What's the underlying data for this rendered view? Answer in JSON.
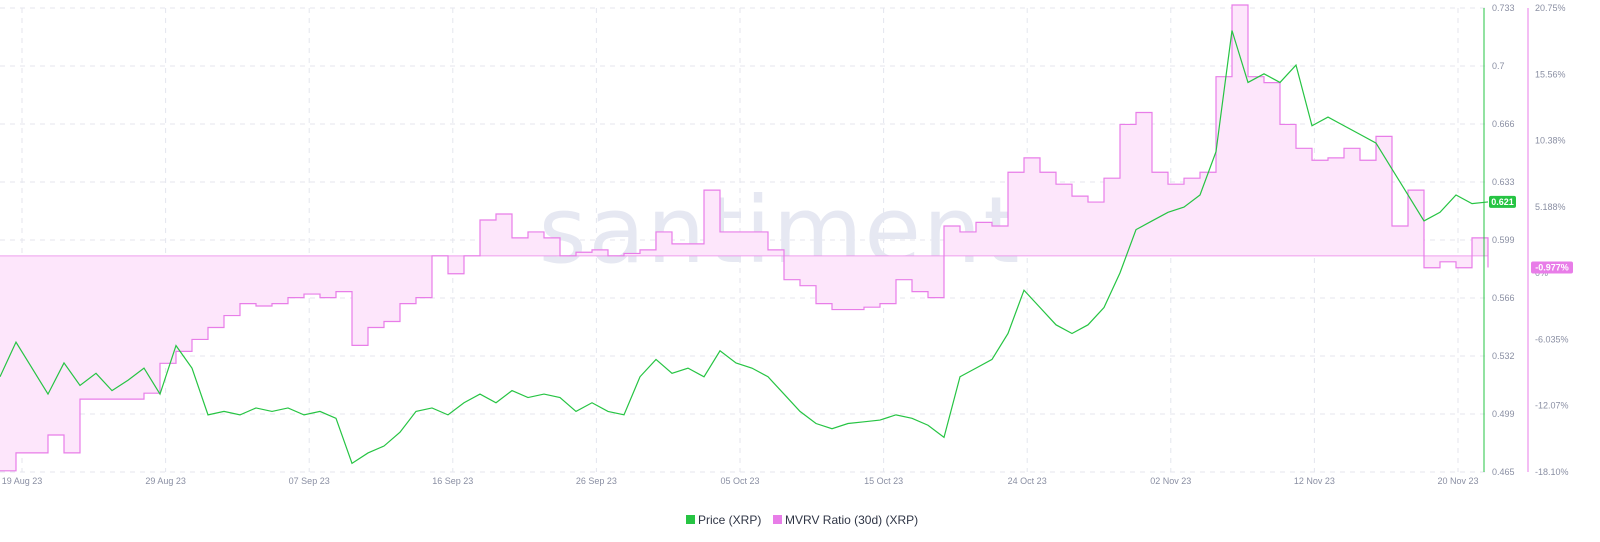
{
  "watermark": "santiment",
  "colors": {
    "price": "#26c443",
    "mvrv": "#e87de8",
    "mvrv_fill": "#fde6fb",
    "grid": "#e4e6ee"
  },
  "chart_data": {
    "type": "line",
    "x_ticks": [
      "19 Aug 23",
      "29 Aug 23",
      "07 Sep 23",
      "16 Sep 23",
      "26 Sep 23",
      "05 Oct 23",
      "15 Oct 23",
      "24 Oct 23",
      "02 Nov 23",
      "12 Nov 23",
      "20 Nov 23"
    ],
    "x_range": [
      0,
      93
    ],
    "series": [
      {
        "name": "Price (XRP)",
        "axis": "right-inner",
        "ylim": [
          0.465,
          0.733
        ],
        "y_ticks": [
          "0.733",
          "0.7",
          "0.666",
          "0.633",
          "0.599",
          "0.566",
          "0.532",
          "0.499",
          "0.465"
        ],
        "last_value": "0.621",
        "points": [
          [
            0,
            0.52
          ],
          [
            1,
            0.54
          ],
          [
            2,
            0.525
          ],
          [
            3,
            0.51
          ],
          [
            4,
            0.528
          ],
          [
            5,
            0.515
          ],
          [
            6,
            0.522
          ],
          [
            7,
            0.512
          ],
          [
            8,
            0.518
          ],
          [
            9,
            0.525
          ],
          [
            10,
            0.51
          ],
          [
            11,
            0.538
          ],
          [
            12,
            0.525
          ],
          [
            13,
            0.498
          ],
          [
            14,
            0.5
          ],
          [
            15,
            0.498
          ],
          [
            16,
            0.502
          ],
          [
            17,
            0.5
          ],
          [
            18,
            0.502
          ],
          [
            19,
            0.498
          ],
          [
            20,
            0.5
          ],
          [
            21,
            0.496
          ],
          [
            22,
            0.47
          ],
          [
            23,
            0.476
          ],
          [
            24,
            0.48
          ],
          [
            25,
            0.488
          ],
          [
            26,
            0.5
          ],
          [
            27,
            0.502
          ],
          [
            28,
            0.498
          ],
          [
            29,
            0.505
          ],
          [
            30,
            0.51
          ],
          [
            31,
            0.505
          ],
          [
            32,
            0.512
          ],
          [
            33,
            0.508
          ],
          [
            34,
            0.51
          ],
          [
            35,
            0.508
          ],
          [
            36,
            0.5
          ],
          [
            37,
            0.505
          ],
          [
            38,
            0.5
          ],
          [
            39,
            0.498
          ],
          [
            40,
            0.52
          ],
          [
            41,
            0.53
          ],
          [
            42,
            0.522
          ],
          [
            43,
            0.525
          ],
          [
            44,
            0.52
          ],
          [
            45,
            0.535
          ],
          [
            46,
            0.528
          ],
          [
            47,
            0.525
          ],
          [
            48,
            0.52
          ],
          [
            49,
            0.51
          ],
          [
            50,
            0.5
          ],
          [
            51,
            0.493
          ],
          [
            52,
            0.49
          ],
          [
            53,
            0.493
          ],
          [
            54,
            0.494
          ],
          [
            55,
            0.495
          ],
          [
            56,
            0.498
          ],
          [
            57,
            0.496
          ],
          [
            58,
            0.492
          ],
          [
            59,
            0.485
          ],
          [
            60,
            0.52
          ],
          [
            61,
            0.525
          ],
          [
            62,
            0.53
          ],
          [
            63,
            0.545
          ],
          [
            64,
            0.57
          ],
          [
            65,
            0.56
          ],
          [
            66,
            0.55
          ],
          [
            67,
            0.545
          ],
          [
            68,
            0.55
          ],
          [
            69,
            0.56
          ],
          [
            70,
            0.58
          ],
          [
            71,
            0.605
          ],
          [
            72,
            0.61
          ],
          [
            73,
            0.615
          ],
          [
            74,
            0.618
          ],
          [
            75,
            0.625
          ],
          [
            76,
            0.65
          ],
          [
            77,
            0.72
          ],
          [
            78,
            0.69
          ],
          [
            79,
            0.695
          ],
          [
            80,
            0.69
          ],
          [
            81,
            0.7
          ],
          [
            82,
            0.665
          ],
          [
            83,
            0.67
          ],
          [
            84,
            0.665
          ],
          [
            85,
            0.66
          ],
          [
            86,
            0.655
          ],
          [
            87,
            0.64
          ],
          [
            88,
            0.625
          ],
          [
            89,
            0.61
          ],
          [
            90,
            0.615
          ],
          [
            91,
            0.625
          ],
          [
            92,
            0.62
          ],
          [
            93,
            0.621
          ]
        ]
      },
      {
        "name": "MVRV Ratio (30d) (XRP)",
        "axis": "right-outer",
        "ylim": [
          -18.1,
          20.75
        ],
        "y_ticks": [
          "20.75%",
          "15.56%",
          "10.38%",
          "5.188%",
          "0%",
          "-6.035%",
          "-12.07%",
          "-18.10%"
        ],
        "last_value": "-0.977%",
        "points": [
          [
            0,
            -18
          ],
          [
            1,
            -16.5
          ],
          [
            2,
            -16.5
          ],
          [
            3,
            -15
          ],
          [
            4,
            -16.5
          ],
          [
            5,
            -12
          ],
          [
            6,
            -12
          ],
          [
            7,
            -12
          ],
          [
            8,
            -12
          ],
          [
            9,
            -11.5
          ],
          [
            10,
            -9
          ],
          [
            11,
            -8
          ],
          [
            12,
            -7
          ],
          [
            13,
            -6
          ],
          [
            14,
            -5
          ],
          [
            15,
            -4
          ],
          [
            16,
            -4.2
          ],
          [
            17,
            -4
          ],
          [
            18,
            -3.5
          ],
          [
            19,
            -3.2
          ],
          [
            20,
            -3.5
          ],
          [
            21,
            -3
          ],
          [
            22,
            -7.5
          ],
          [
            23,
            -6
          ],
          [
            24,
            -5.5
          ],
          [
            25,
            -4
          ],
          [
            26,
            -3.5
          ],
          [
            27,
            0
          ],
          [
            28,
            -1.5
          ],
          [
            29,
            0
          ],
          [
            30,
            3
          ],
          [
            31,
            3.5
          ],
          [
            32,
            1.5
          ],
          [
            33,
            2
          ],
          [
            34,
            1.5
          ],
          [
            35,
            0
          ],
          [
            36,
            0.3
          ],
          [
            37,
            0.5
          ],
          [
            38,
            0
          ],
          [
            39,
            0.2
          ],
          [
            40,
            0.5
          ],
          [
            41,
            2
          ],
          [
            42,
            1
          ],
          [
            43,
            1
          ],
          [
            44,
            5.5
          ],
          [
            45,
            2
          ],
          [
            46,
            2
          ],
          [
            47,
            2
          ],
          [
            48,
            0.5
          ],
          [
            49,
            -2
          ],
          [
            50,
            -2.5
          ],
          [
            51,
            -4
          ],
          [
            52,
            -4.5
          ],
          [
            53,
            -4.5
          ],
          [
            54,
            -4.3
          ],
          [
            55,
            -4
          ],
          [
            56,
            -2
          ],
          [
            57,
            -3
          ],
          [
            58,
            -3.5
          ],
          [
            59,
            2.5
          ],
          [
            60,
            2
          ],
          [
            61,
            2.8
          ],
          [
            62,
            2.5
          ],
          [
            63,
            7
          ],
          [
            64,
            8.2
          ],
          [
            65,
            7
          ],
          [
            66,
            6
          ],
          [
            67,
            5
          ],
          [
            68,
            4.5
          ],
          [
            69,
            6.5
          ],
          [
            70,
            11
          ],
          [
            71,
            12
          ],
          [
            72,
            7
          ],
          [
            73,
            6
          ],
          [
            74,
            6.5
          ],
          [
            75,
            7
          ],
          [
            76,
            15
          ],
          [
            77,
            21
          ],
          [
            78,
            15
          ],
          [
            79,
            14.5
          ],
          [
            80,
            11
          ],
          [
            81,
            9
          ],
          [
            82,
            8
          ],
          [
            83,
            8.2
          ],
          [
            84,
            9
          ],
          [
            85,
            8
          ],
          [
            86,
            10
          ],
          [
            87,
            2.5
          ],
          [
            88,
            5.5
          ],
          [
            89,
            -1
          ],
          [
            90,
            -0.5
          ],
          [
            91,
            -1
          ],
          [
            92,
            1.5
          ],
          [
            93,
            -0.977
          ]
        ]
      }
    ],
    "legend": [
      "Price (XRP)",
      "MVRV Ratio (30d) (XRP)"
    ],
    "legend_position": "bottom-center",
    "grid": true
  }
}
